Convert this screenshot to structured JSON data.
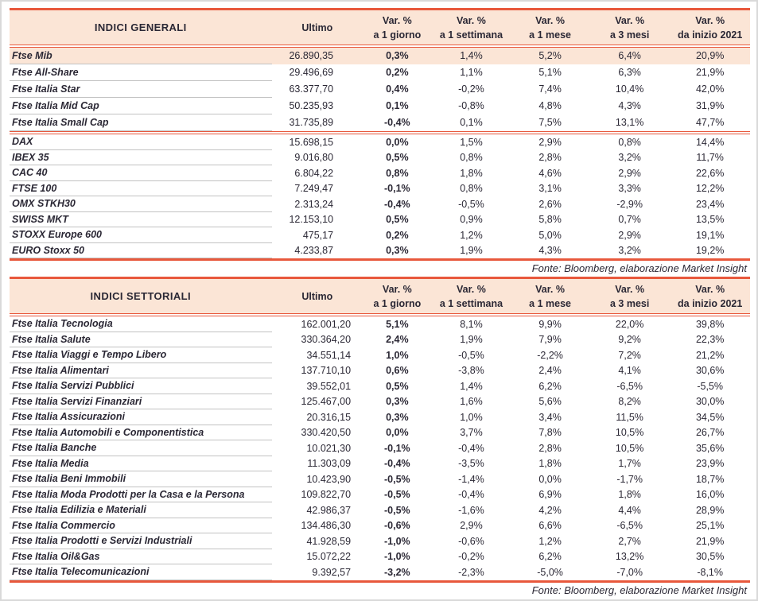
{
  "colors": {
    "accent_red": "#E8583C",
    "header_bg": "#FBE5D6",
    "highlight_bg": "#FBE5D6",
    "text": "#2B2835",
    "row_divider": "#C2C2C2",
    "page_border": "#D9D9D9"
  },
  "column_headers": {
    "ultimo": "Ultimo",
    "var_label": "Var. %",
    "periods": [
      "a 1 giorno",
      "a 1 settimana",
      "a 1 mese",
      "a 3 mesi",
      "da inizio 2021"
    ]
  },
  "general_table": {
    "title": "INDICI GENERALI",
    "sections": [
      [
        {
          "name": "Ftse Mib",
          "ultimo": "26.890,35",
          "d1": "0,3%",
          "w1": "1,4%",
          "m1": "5,2%",
          "m3": "6,4%",
          "ytd": "20,9%",
          "highlight": true
        },
        {
          "name": "Ftse All-Share",
          "ultimo": "29.496,69",
          "d1": "0,2%",
          "w1": "1,1%",
          "m1": "5,1%",
          "m3": "6,3%",
          "ytd": "21,9%"
        },
        {
          "name": "Ftse Italia Star",
          "ultimo": "63.377,70",
          "d1": "0,4%",
          "w1": "-0,2%",
          "m1": "7,4%",
          "m3": "10,4%",
          "ytd": "42,0%"
        },
        {
          "name": "Ftse Italia Mid Cap",
          "ultimo": "50.235,93",
          "d1": "0,1%",
          "w1": "-0,8%",
          "m1": "4,8%",
          "m3": "4,3%",
          "ytd": "31,9%"
        },
        {
          "name": "Ftse Italia Small Cap",
          "ultimo": "31.735,89",
          "d1": "-0,4%",
          "w1": "0,1%",
          "m1": "7,5%",
          "m3": "13,1%",
          "ytd": "47,7%"
        }
      ],
      [
        {
          "name": "DAX",
          "ultimo": "15.698,15",
          "d1": "0,0%",
          "w1": "1,5%",
          "m1": "2,9%",
          "m3": "0,8%",
          "ytd": "14,4%"
        },
        {
          "name": "IBEX 35",
          "ultimo": "9.016,80",
          "d1": "0,5%",
          "w1": "0,8%",
          "m1": "2,8%",
          "m3": "3,2%",
          "ytd": "11,7%"
        },
        {
          "name": "CAC 40",
          "ultimo": "6.804,22",
          "d1": "0,8%",
          "w1": "1,8%",
          "m1": "4,6%",
          "m3": "2,9%",
          "ytd": "22,6%"
        },
        {
          "name": "FTSE 100",
          "ultimo": "7.249,47",
          "d1": "-0,1%",
          "w1": "0,8%",
          "m1": "3,1%",
          "m3": "3,3%",
          "ytd": "12,2%"
        },
        {
          "name": "OMX STKH30",
          "ultimo": "2.313,24",
          "d1": "-0,4%",
          "w1": "-0,5%",
          "m1": "2,6%",
          "m3": "-2,9%",
          "ytd": "23,4%"
        },
        {
          "name": "SWISS MKT",
          "ultimo": "12.153,10",
          "d1": "0,5%",
          "w1": "0,9%",
          "m1": "5,8%",
          "m3": "0,7%",
          "ytd": "13,5%"
        },
        {
          "name": "STOXX Europe 600",
          "ultimo": "475,17",
          "d1": "0,2%",
          "w1": "1,2%",
          "m1": "5,0%",
          "m3": "2,9%",
          "ytd": "19,1%"
        },
        {
          "name": "EURO Stoxx 50",
          "ultimo": "4.233,87",
          "d1": "0,3%",
          "w1": "1,9%",
          "m1": "4,3%",
          "m3": "3,2%",
          "ytd": "19,2%"
        }
      ]
    ]
  },
  "sector_table": {
    "title": "INDICI SETTORIALI",
    "rows": [
      {
        "name": "Ftse Italia Tecnologia",
        "ultimo": "162.001,20",
        "d1": "5,1%",
        "w1": "8,1%",
        "m1": "9,9%",
        "m3": "22,0%",
        "ytd": "39,8%"
      },
      {
        "name": "Ftse Italia Salute",
        "ultimo": "330.364,20",
        "d1": "2,4%",
        "w1": "1,9%",
        "m1": "7,9%",
        "m3": "9,2%",
        "ytd": "22,3%"
      },
      {
        "name": "Ftse Italia Viaggi e Tempo Libero",
        "ultimo": "34.551,14",
        "d1": "1,0%",
        "w1": "-0,5%",
        "m1": "-2,2%",
        "m3": "7,2%",
        "ytd": "21,2%"
      },
      {
        "name": "Ftse Italia Alimentari",
        "ultimo": "137.710,10",
        "d1": "0,6%",
        "w1": "-3,8%",
        "m1": "2,4%",
        "m3": "4,1%",
        "ytd": "30,6%"
      },
      {
        "name": "Ftse Italia Servizi Pubblici",
        "ultimo": "39.552,01",
        "d1": "0,5%",
        "w1": "1,4%",
        "m1": "6,2%",
        "m3": "-6,5%",
        "ytd": "-5,5%"
      },
      {
        "name": "Ftse Italia Servizi Finanziari",
        "ultimo": "125.467,00",
        "d1": "0,3%",
        "w1": "1,6%",
        "m1": "5,6%",
        "m3": "8,2%",
        "ytd": "30,0%"
      },
      {
        "name": "Ftse Italia Assicurazioni",
        "ultimo": "20.316,15",
        "d1": "0,3%",
        "w1": "1,0%",
        "m1": "3,4%",
        "m3": "11,5%",
        "ytd": "34,5%"
      },
      {
        "name": "Ftse Italia Automobili e Componentistica",
        "ultimo": "330.420,50",
        "d1": "0,0%",
        "w1": "3,7%",
        "m1": "7,8%",
        "m3": "10,5%",
        "ytd": "26,7%"
      },
      {
        "name": "Ftse Italia Banche",
        "ultimo": "10.021,30",
        "d1": "-0,1%",
        "w1": "-0,4%",
        "m1": "2,8%",
        "m3": "10,5%",
        "ytd": "35,6%"
      },
      {
        "name": "Ftse Italia Media",
        "ultimo": "11.303,09",
        "d1": "-0,4%",
        "w1": "-3,5%",
        "m1": "1,8%",
        "m3": "1,7%",
        "ytd": "23,9%"
      },
      {
        "name": "Ftse Italia Beni Immobili",
        "ultimo": "10.423,90",
        "d1": "-0,5%",
        "w1": "-1,4%",
        "m1": "0,0%",
        "m3": "-1,7%",
        "ytd": "18,7%"
      },
      {
        "name": "Ftse Italia Moda Prodotti per la Casa e la Persona",
        "ultimo": "109.822,70",
        "d1": "-0,5%",
        "w1": "-0,4%",
        "m1": "6,9%",
        "m3": "1,8%",
        "ytd": "16,0%"
      },
      {
        "name": "Ftse Italia Edilizia e Materiali",
        "ultimo": "42.986,37",
        "d1": "-0,5%",
        "w1": "-1,6%",
        "m1": "4,2%",
        "m3": "4,4%",
        "ytd": "28,9%"
      },
      {
        "name": "Ftse Italia Commercio",
        "ultimo": "134.486,30",
        "d1": "-0,6%",
        "w1": "2,9%",
        "m1": "6,6%",
        "m3": "-6,5%",
        "ytd": "25,1%"
      },
      {
        "name": "Ftse Italia Prodotti e Servizi Industriali",
        "ultimo": "41.928,59",
        "d1": "-1,0%",
        "w1": "-0,6%",
        "m1": "1,2%",
        "m3": "2,7%",
        "ytd": "21,9%"
      },
      {
        "name": "Ftse Italia Oil&Gas",
        "ultimo": "15.072,22",
        "d1": "-1,0%",
        "w1": "-0,2%",
        "m1": "6,2%",
        "m3": "13,2%",
        "ytd": "30,5%"
      },
      {
        "name": "Ftse Italia Telecomunicazioni",
        "ultimo": "9.392,57",
        "d1": "-3,2%",
        "w1": "-2,3%",
        "m1": "-5,0%",
        "m3": "-7,0%",
        "ytd": "-8,1%"
      }
    ]
  },
  "footer": {
    "source_note_general": "Fonte: Bloomberg, elaborazione Market Insight",
    "source_note_sector": "Fonte: Bloomberg, elaborazione Market Insight"
  }
}
